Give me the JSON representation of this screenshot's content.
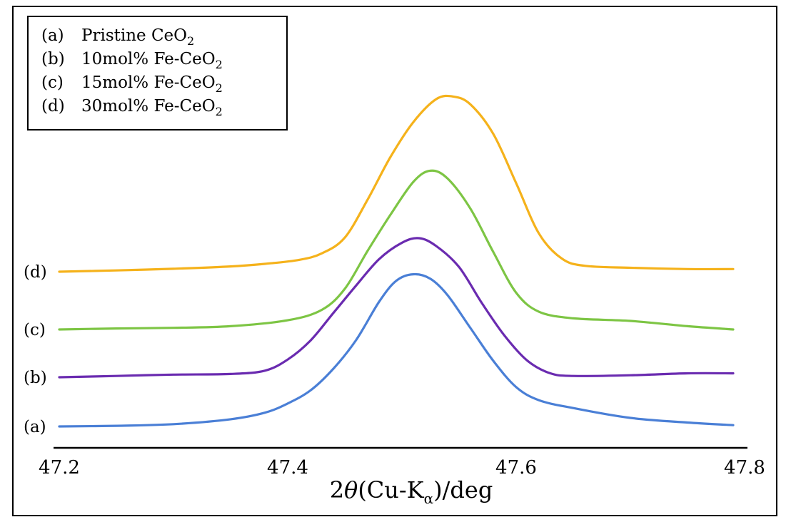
{
  "chart_data": {
    "type": "line",
    "title": "",
    "xlabel": "2θ(Cu-Kα)/deg",
    "ylabel": "",
    "xlim": [
      47.2,
      47.8
    ],
    "x_ticks": [
      "47.2",
      "47.4",
      "47.6",
      "47.8"
    ],
    "grid": false,
    "legend_position": "top-left",
    "legend": [
      {
        "tag": "(a)",
        "text": "Pristine CeO",
        "sub": "2"
      },
      {
        "tag": "(b)",
        "text": "10mol% Fe-CeO",
        "sub": "2"
      },
      {
        "tag": "(c)",
        "text": "15mol% Fe-CeO",
        "sub": "2"
      },
      {
        "tag": "(d)",
        "text": "30mol% Fe-CeO",
        "sub": "2"
      }
    ],
    "series": [
      {
        "name": "(a) Pristine CeO2",
        "label": "(a)",
        "color": "#4A7FD6",
        "points": [
          [
            47.2,
            0.0
          ],
          [
            47.25,
            1.0
          ],
          [
            47.3,
            3.5
          ],
          [
            47.35,
            11
          ],
          [
            47.38,
            21
          ],
          [
            47.4,
            35
          ],
          [
            47.42,
            55
          ],
          [
            47.44,
            88
          ],
          [
            47.46,
            132
          ],
          [
            47.48,
            190
          ],
          [
            47.495,
            222
          ],
          [
            47.51,
            232
          ],
          [
            47.525,
            225
          ],
          [
            47.54,
            200
          ],
          [
            47.56,
            150
          ],
          [
            47.58,
            100
          ],
          [
            47.6,
            60
          ],
          [
            47.62,
            40
          ],
          [
            47.65,
            28
          ],
          [
            47.7,
            13
          ],
          [
            47.75,
            6
          ],
          [
            47.79,
            2
          ]
        ]
      },
      {
        "name": "(b) 10mol% Fe-CeO2",
        "label": "(b)",
        "color": "#6A2BB0",
        "points": [
          [
            47.2,
            0.0
          ],
          [
            47.25,
            2
          ],
          [
            47.3,
            4
          ],
          [
            47.35,
            5
          ],
          [
            47.38,
            10
          ],
          [
            47.4,
            27
          ],
          [
            47.42,
            56
          ],
          [
            47.44,
            98
          ],
          [
            47.46,
            140
          ],
          [
            47.48,
            180
          ],
          [
            47.5,
            205
          ],
          [
            47.515,
            212
          ],
          [
            47.53,
            200
          ],
          [
            47.55,
            168
          ],
          [
            47.57,
            113
          ],
          [
            47.59,
            63
          ],
          [
            47.61,
            25
          ],
          [
            47.63,
            6
          ],
          [
            47.65,
            2
          ],
          [
            47.7,
            3
          ],
          [
            47.75,
            6
          ],
          [
            47.79,
            6
          ]
        ]
      },
      {
        "name": "(c) 15mol% Fe-CeO2",
        "label": "(c)",
        "color": "#7DC544",
        "points": [
          [
            47.2,
            0.0
          ],
          [
            47.25,
            1.5
          ],
          [
            47.3,
            2.5
          ],
          [
            47.35,
            5
          ],
          [
            47.4,
            14
          ],
          [
            47.43,
            30
          ],
          [
            47.45,
            62
          ],
          [
            47.47,
            120
          ],
          [
            47.49,
            175
          ],
          [
            47.51,
            225
          ],
          [
            47.525,
            242
          ],
          [
            47.54,
            230
          ],
          [
            47.56,
            184
          ],
          [
            47.58,
            118
          ],
          [
            47.6,
            56
          ],
          [
            47.62,
            27
          ],
          [
            47.65,
            17
          ],
          [
            47.7,
            13
          ],
          [
            47.75,
            5
          ],
          [
            47.79,
            0
          ]
        ]
      },
      {
        "name": "(d) 30mol% Fe-CeO2",
        "label": "(d)",
        "color": "#F5B21B",
        "points": [
          [
            47.2,
            0.0
          ],
          [
            47.25,
            2
          ],
          [
            47.3,
            4.5
          ],
          [
            47.35,
            8
          ],
          [
            47.38,
            12
          ],
          [
            47.41,
            18
          ],
          [
            47.43,
            28
          ],
          [
            47.45,
            52
          ],
          [
            47.47,
            110
          ],
          [
            47.49,
            175
          ],
          [
            47.51,
            228
          ],
          [
            47.53,
            263
          ],
          [
            47.545,
            267
          ],
          [
            47.56,
            255
          ],
          [
            47.58,
            210
          ],
          [
            47.6,
            135
          ],
          [
            47.62,
            58
          ],
          [
            47.64,
            20
          ],
          [
            47.66,
            9
          ],
          [
            47.7,
            6
          ],
          [
            47.75,
            4
          ],
          [
            47.79,
            4
          ]
        ]
      }
    ]
  }
}
